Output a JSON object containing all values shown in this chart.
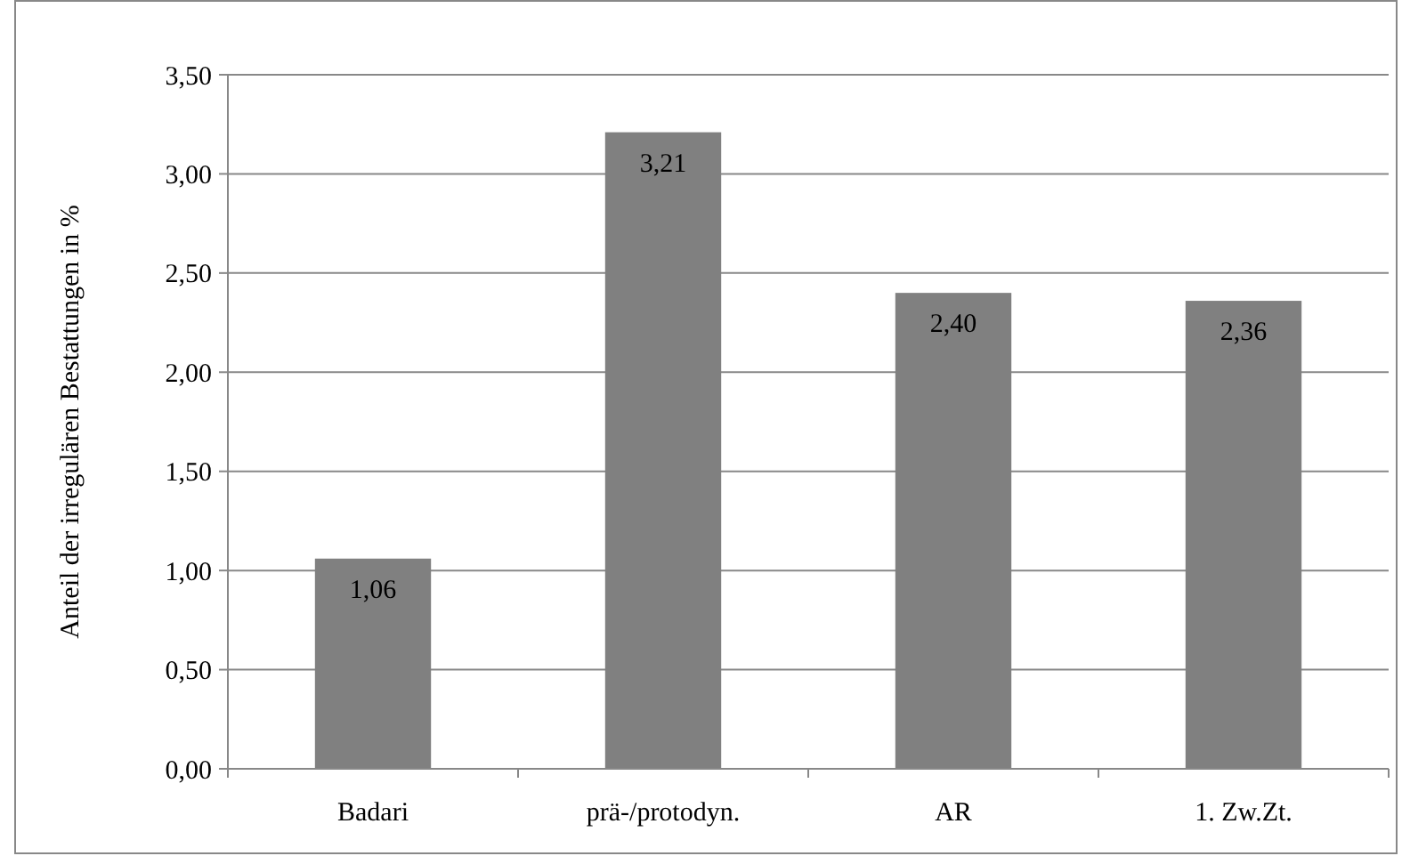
{
  "chart_data": {
    "type": "bar",
    "ylabel": "Anteil der irregulären Bestattungen in %",
    "categories": [
      "Badari",
      "prä-/protodyn.",
      "AR",
      "1. Zw.Zt."
    ],
    "values": [
      1.06,
      3.21,
      2.4,
      2.36
    ],
    "value_labels": [
      "1,06",
      "3,21",
      "2,40",
      "2,36"
    ],
    "color": "#808080",
    "ylim": [
      0,
      3.5
    ],
    "yticks": [
      {
        "value": 0,
        "label": "0,00"
      },
      {
        "value": 0.5,
        "label": "0,50"
      },
      {
        "value": 1,
        "label": "1,00"
      },
      {
        "value": 1.5,
        "label": "1,50"
      },
      {
        "value": 2,
        "label": "2,00"
      },
      {
        "value": 2.5,
        "label": "2,50"
      },
      {
        "value": 3,
        "label": "3,00"
      },
      {
        "value": 3.5,
        "label": "3,50"
      }
    ],
    "grid": "y"
  }
}
